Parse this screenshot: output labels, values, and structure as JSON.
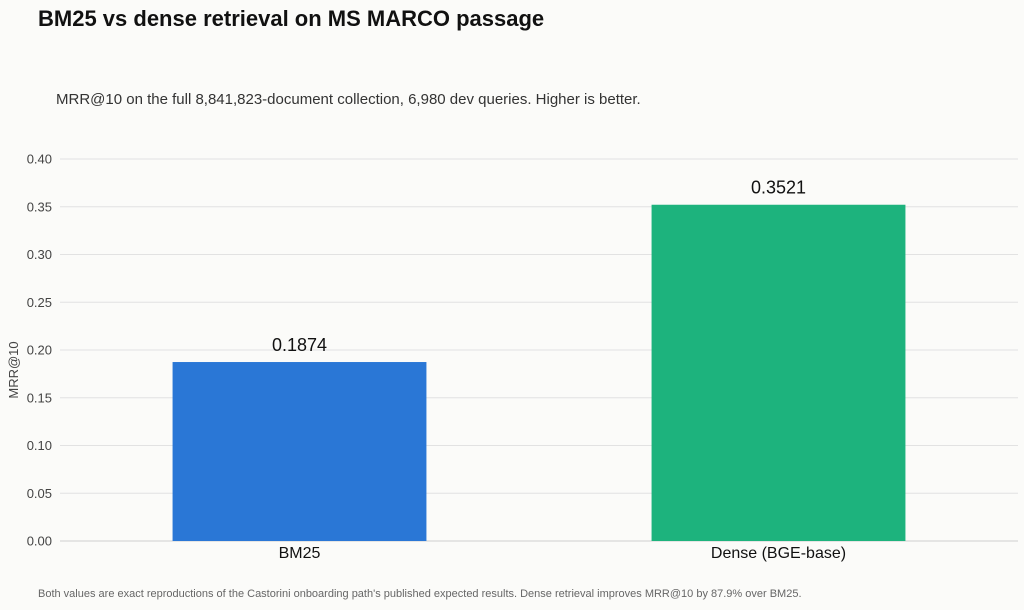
{
  "chart_data": {
    "type": "bar",
    "title": "BM25 vs dense retrieval on MS MARCO passage",
    "subtitle": "MRR@10 on the full 8,841,823-document collection, 6,980 dev queries. Higher is better.",
    "ylabel": "MRR@10",
    "xlabel": "",
    "categories": [
      "BM25",
      "Dense (BGE-base)"
    ],
    "values": [
      0.1874,
      0.3521
    ],
    "value_labels": [
      "0.1874",
      "0.3521"
    ],
    "colors": [
      "#2a77d6",
      "#1db37d"
    ],
    "ylim": [
      0,
      0.4
    ],
    "yticks": [
      "0.00",
      "0.05",
      "0.10",
      "0.15",
      "0.20",
      "0.25",
      "0.30",
      "0.35",
      "0.40"
    ],
    "grid": true,
    "legend": "none",
    "footnote": "Both values are exact reproductions of the Castorini onboarding path's published expected results. Dense retrieval improves MRR@10 by 87.9% over BM25."
  }
}
